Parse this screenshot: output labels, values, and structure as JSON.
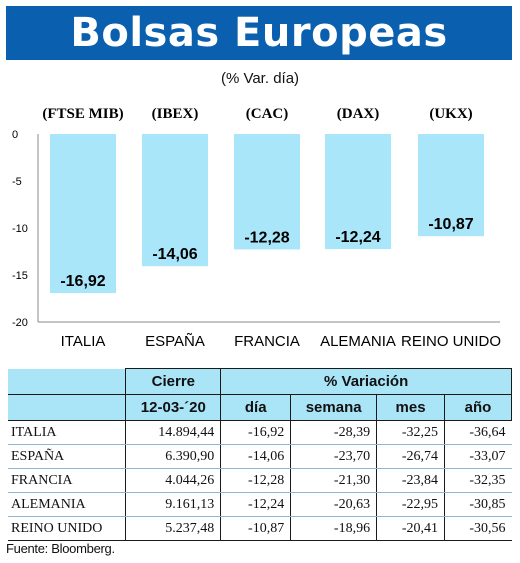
{
  "header": {
    "title": "Bolsas Europeas",
    "subtitle": "(% Var. día)"
  },
  "chart_data": {
    "type": "bar",
    "index_labels": [
      "(FTSE MIB)",
      "(IBEX)",
      "(CAC)",
      "(DAX)",
      "(UKX)"
    ],
    "categories": [
      "ITALIA",
      "ESPAÑA",
      "FRANCIA",
      "ALEMANIA",
      "REINO UNIDO"
    ],
    "values": [
      -16.92,
      -14.06,
      -12.28,
      -12.24,
      -10.87
    ],
    "value_labels": [
      "-16,92",
      "-14,06",
      "-12,28",
      "-12,24",
      "-10,87"
    ],
    "y_ticks": [
      0,
      -5,
      -10,
      -15,
      -20
    ],
    "y_tick_labels": [
      "0",
      "-5",
      "-10",
      "-15",
      "-20"
    ],
    "ylim": [
      -20,
      0
    ],
    "bar_color": "#aae6fa",
    "grid": false
  },
  "table": {
    "group_headers": {
      "cierre": "Cierre",
      "variacion": "% Variación"
    },
    "sub_headers": [
      "12-03-´20",
      "día",
      "semana",
      "mes",
      "año"
    ],
    "rows": [
      {
        "country": "ITALIA",
        "cierre": "14.894,44",
        "dia": "-16,92",
        "semana": "-28,39",
        "mes": "-32,25",
        "ano": "-36,64"
      },
      {
        "country": "ESPAÑA",
        "cierre": "6.390,90",
        "dia": "-14,06",
        "semana": "-23,70",
        "mes": "-26,74",
        "ano": "-33,07"
      },
      {
        "country": "FRANCIA",
        "cierre": "4.044,26",
        "dia": "-12,28",
        "semana": "-21,30",
        "mes": "-23,84",
        "ano": "-32,35"
      },
      {
        "country": "ALEMANIA",
        "cierre": "9.161,13",
        "dia": "-12,24",
        "semana": "-20,63",
        "mes": "-22,95",
        "ano": "-30,85"
      },
      {
        "country": "REINO UNIDO",
        "cierre": "5.237,48",
        "dia": "-10,87",
        "semana": "-18,96",
        "mes": "-20,41",
        "ano": "-30,56"
      }
    ],
    "header_color": "#a9e4f7"
  },
  "footer": {
    "source": "Fuente: Bloomberg."
  },
  "colors": {
    "banner": "#0a5fae"
  }
}
